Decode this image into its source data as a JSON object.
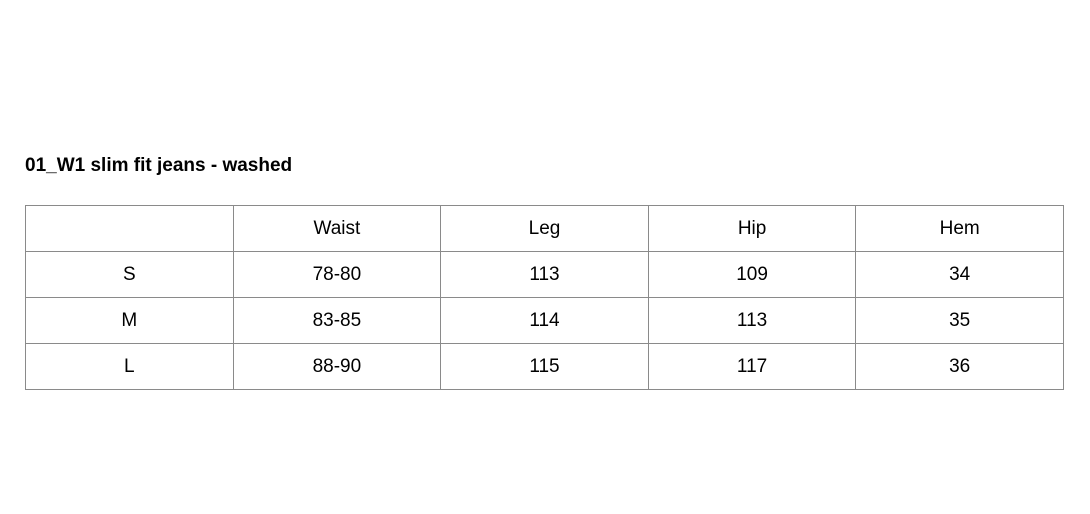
{
  "title": "01_W1 slim fit jeans - washed",
  "table": {
    "headers": [
      "",
      "Waist",
      "Leg",
      "Hip",
      "Hem"
    ],
    "rows": [
      [
        "S",
        "78-80",
        "113",
        "109",
        "34"
      ],
      [
        "M",
        "83-85",
        "114",
        "113",
        "35"
      ],
      [
        "L",
        "88-90",
        "115",
        "117",
        "36"
      ]
    ]
  }
}
